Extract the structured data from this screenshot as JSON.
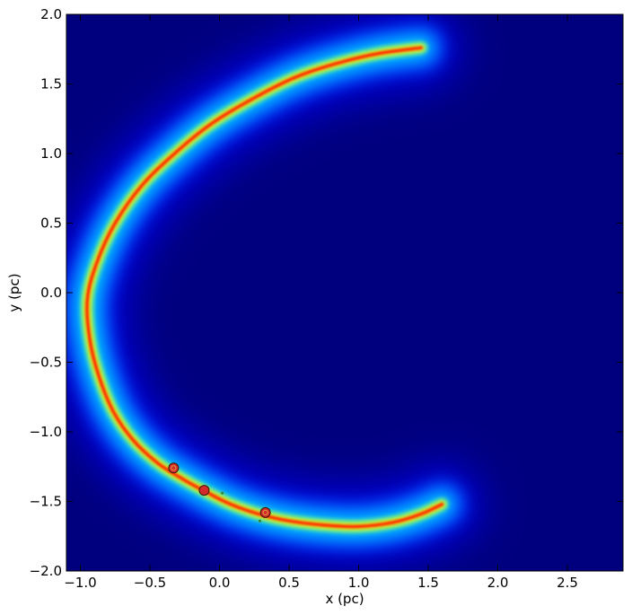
{
  "chart_data": {
    "type": "heatmap",
    "title": "",
    "xlabel": "x (pc)",
    "ylabel": "y (pc)",
    "xlim": [
      -1.1,
      2.9
    ],
    "ylim": [
      -2.0,
      2.0
    ],
    "xticks": [
      {
        "value": -1.0,
        "label": "−1.0"
      },
      {
        "value": -0.5,
        "label": "−0.5"
      },
      {
        "value": 0.0,
        "label": "0.0"
      },
      {
        "value": 0.5,
        "label": "0.5"
      },
      {
        "value": 1.0,
        "label": "1.0"
      },
      {
        "value": 1.5,
        "label": "1.5"
      },
      {
        "value": 2.0,
        "label": "2.0"
      },
      {
        "value": 2.5,
        "label": "2.5"
      }
    ],
    "yticks": [
      {
        "value": 2.0,
        "label": "2.0"
      },
      {
        "value": 1.5,
        "label": "1.5"
      },
      {
        "value": 1.0,
        "label": "1.0"
      },
      {
        "value": 0.5,
        "label": "0.5"
      },
      {
        "value": 0.0,
        "label": "0.0"
      },
      {
        "value": -0.5,
        "label": "−0.5"
      },
      {
        "value": -1.0,
        "label": "−1.0"
      },
      {
        "value": -1.5,
        "label": "−1.5"
      },
      {
        "value": -2.0,
        "label": "−2.0"
      }
    ],
    "grid": false,
    "colormap": "jet",
    "colors": {
      "background": "#00007f",
      "ridge": "#ff2000",
      "halo": "#00c8ff"
    },
    "ridge": [
      [
        1.45,
        1.76
      ],
      [
        1.15,
        1.72
      ],
      [
        0.85,
        1.65
      ],
      [
        0.55,
        1.55
      ],
      [
        0.25,
        1.4
      ],
      [
        -0.05,
        1.22
      ],
      [
        -0.3,
        1.02
      ],
      [
        -0.55,
        0.78
      ],
      [
        -0.75,
        0.5
      ],
      [
        -0.88,
        0.22
      ],
      [
        -0.95,
        -0.05
      ],
      [
        -0.93,
        -0.35
      ],
      [
        -0.86,
        -0.62
      ],
      [
        -0.76,
        -0.86
      ],
      [
        -0.62,
        -1.06
      ],
      [
        -0.45,
        -1.22
      ],
      [
        -0.28,
        -1.33
      ],
      [
        -0.1,
        -1.43
      ],
      [
        0.08,
        -1.52
      ],
      [
        0.28,
        -1.59
      ],
      [
        0.5,
        -1.64
      ],
      [
        0.75,
        -1.67
      ],
      [
        1.0,
        -1.68
      ],
      [
        1.25,
        -1.65
      ],
      [
        1.45,
        -1.59
      ],
      [
        1.6,
        -1.52
      ]
    ],
    "markers": [
      {
        "x": -0.33,
        "y": -1.26,
        "color": "#d42a2a",
        "ring": true
      },
      {
        "x": -0.11,
        "y": -1.42,
        "color": "#d42a2a",
        "ring": false
      },
      {
        "x": 0.33,
        "y": -1.58,
        "color": "#d42a2a",
        "ring": true
      }
    ],
    "small_points": [
      {
        "x": 0.02,
        "y": -1.44,
        "color": "#3a8a3a"
      },
      {
        "x": 0.29,
        "y": -1.64,
        "color": "#3a8a3a"
      }
    ]
  }
}
